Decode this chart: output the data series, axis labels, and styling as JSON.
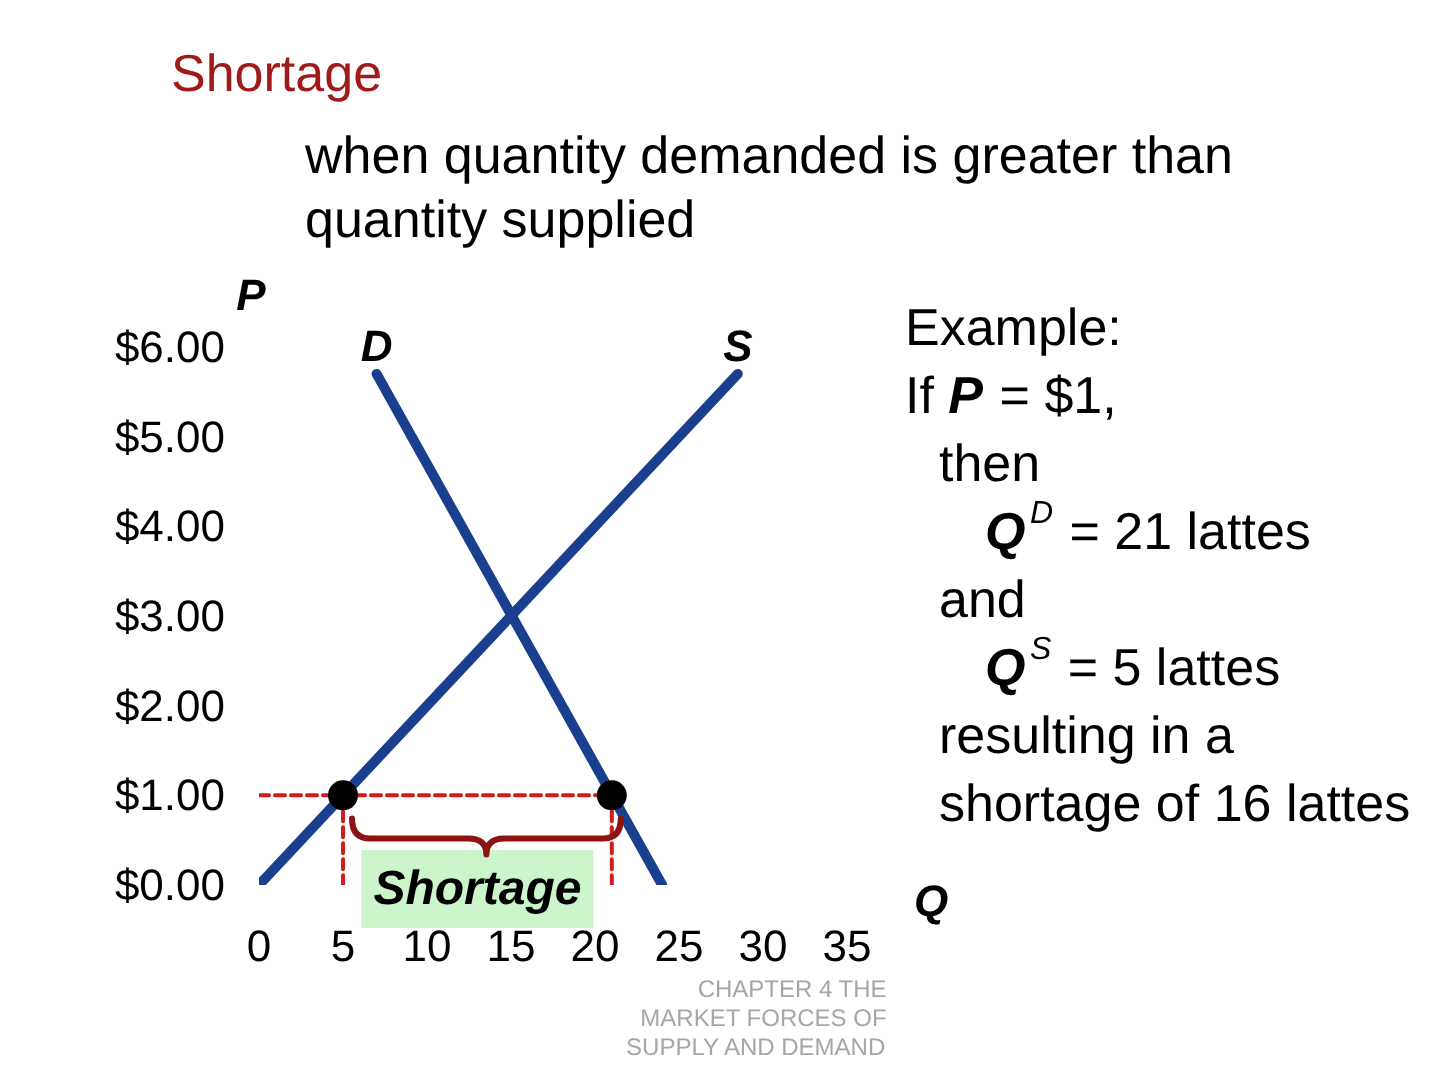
{
  "chart_data": {
    "type": "line",
    "title": "Shortage",
    "subtitle": "when quantity demanded is greater than quantity supplied",
    "xlabel": "Q",
    "ylabel": "P",
    "xlim": [
      0,
      35
    ],
    "ylim": [
      0,
      6
    ],
    "xticks": [
      0,
      5,
      10,
      15,
      20,
      25,
      30,
      35
    ],
    "yticks": [
      {
        "value": 0,
        "label": "$0.00"
      },
      {
        "value": 1,
        "label": "$1.00"
      },
      {
        "value": 2,
        "label": "$2.00"
      },
      {
        "value": 3,
        "label": "$3.00"
      },
      {
        "value": 4,
        "label": "$4.00"
      },
      {
        "value": 5,
        "label": "$5.00"
      },
      {
        "value": 6,
        "label": "$6.00"
      }
    ],
    "series": [
      {
        "name": "D",
        "color": "#1b3f8f",
        "x": [
          7,
          24
        ],
        "values": [
          5.7,
          0
        ]
      },
      {
        "name": "S",
        "color": "#1b3f8f",
        "x": [
          0,
          28.5
        ],
        "values": [
          0,
          5.7
        ]
      },
      {
        "color": "#d01c1c",
        "line_style": "dashed",
        "x": [
          0,
          21
        ],
        "values": [
          1,
          1
        ]
      },
      {
        "color": "#d01c1c",
        "line_style": "dashed",
        "x": [
          5,
          5
        ],
        "values": [
          1,
          0
        ]
      },
      {
        "color": "#d01c1c",
        "line_style": "dashed",
        "x": [
          21,
          21
        ],
        "values": [
          1,
          0
        ]
      },
      {
        "type": "scatter",
        "color": "#000000",
        "marker": "circle",
        "x": [
          5,
          21
        ],
        "values": [
          1,
          1
        ]
      }
    ],
    "annotations": [
      "Shortage",
      "Example:",
      "If P = $1,",
      "then",
      "Q$^{D}$ = 21 lattes",
      "and",
      "Q$^{S}$ = 5 lattes",
      "resulting in a",
      "shortage of 16 lattes",
      "CHAPTER 4 THE MARKET FORCES OF SUPPLY AND DEMAND"
    ]
  }
}
